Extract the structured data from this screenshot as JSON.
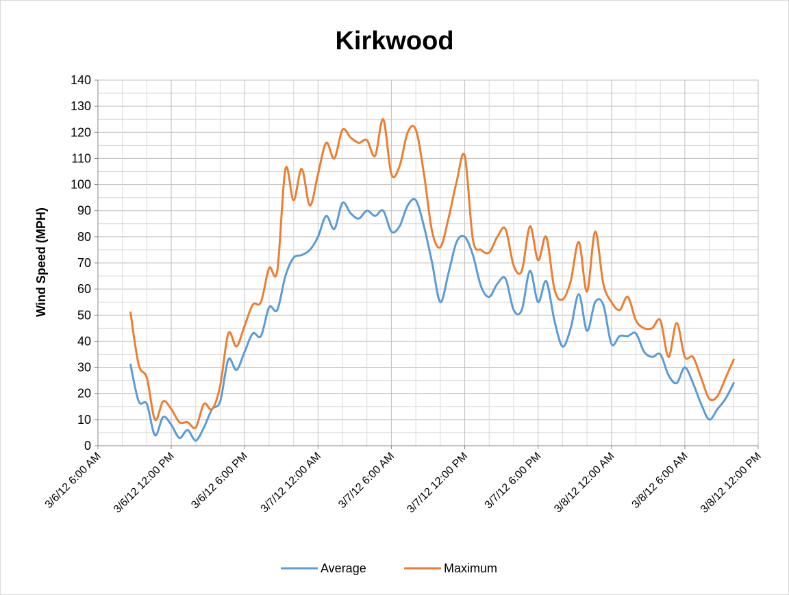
{
  "chart_data": {
    "type": "line",
    "title": "Kirkwood",
    "xlabel": "",
    "ylabel": "Wind Speed (MPH)",
    "ylim": [
      0,
      140
    ],
    "y_ticks": [
      0,
      10,
      20,
      30,
      40,
      50,
      60,
      70,
      80,
      90,
      100,
      110,
      120,
      130,
      140
    ],
    "xlim": [
      "2012-03-06T06:00",
      "2012-03-08T12:00"
    ],
    "x_tick_labels": [
      "3/6/12 6:00 AM",
      "3/6/12 12:00 PM",
      "3/6/12 6:00 PM",
      "3/7/12 12:00 AM",
      "3/7/12 6:00 AM",
      "3/7/12 12:00 PM",
      "3/7/12 6:00 PM",
      "3/8/12 12:00 AM",
      "3/8/12 6:00 AM",
      "3/8/12 12:00 PM"
    ],
    "grid": true,
    "legend": "bottom",
    "x": [
      "2012-03-06T08:40",
      "2012-03-06T09:20",
      "2012-03-06T10:00",
      "2012-03-06T10:40",
      "2012-03-06T11:20",
      "2012-03-06T12:00",
      "2012-03-06T12:40",
      "2012-03-06T13:20",
      "2012-03-06T14:00",
      "2012-03-06T14:40",
      "2012-03-06T15:20",
      "2012-03-06T16:00",
      "2012-03-06T16:40",
      "2012-03-06T17:20",
      "2012-03-06T18:00",
      "2012-03-06T18:40",
      "2012-03-06T19:20",
      "2012-03-06T20:00",
      "2012-03-06T20:40",
      "2012-03-06T21:20",
      "2012-03-06T22:00",
      "2012-03-06T22:40",
      "2012-03-06T23:20",
      "2012-03-07T00:00",
      "2012-03-07T00:40",
      "2012-03-07T01:20",
      "2012-03-07T02:00",
      "2012-03-07T02:40",
      "2012-03-07T03:20",
      "2012-03-07T04:00",
      "2012-03-07T04:40",
      "2012-03-07T05:20",
      "2012-03-07T06:00",
      "2012-03-07T06:40",
      "2012-03-07T07:20",
      "2012-03-07T08:00",
      "2012-03-07T08:40",
      "2012-03-07T09:20",
      "2012-03-07T10:00",
      "2012-03-07T10:40",
      "2012-03-07T11:20",
      "2012-03-07T12:00",
      "2012-03-07T12:40",
      "2012-03-07T13:20",
      "2012-03-07T14:00",
      "2012-03-07T14:40",
      "2012-03-07T15:20",
      "2012-03-07T16:00",
      "2012-03-07T16:40",
      "2012-03-07T17:20",
      "2012-03-07T18:00",
      "2012-03-07T18:40",
      "2012-03-07T19:20",
      "2012-03-07T20:00",
      "2012-03-07T20:40",
      "2012-03-07T21:20",
      "2012-03-07T22:00",
      "2012-03-07T22:40",
      "2012-03-07T23:20",
      "2012-03-08T00:00",
      "2012-03-08T00:40",
      "2012-03-08T01:20",
      "2012-03-08T02:00",
      "2012-03-08T02:40",
      "2012-03-08T03:20",
      "2012-03-08T04:00",
      "2012-03-08T04:40",
      "2012-03-08T05:20",
      "2012-03-08T06:00",
      "2012-03-08T06:40",
      "2012-03-08T07:20",
      "2012-03-08T08:00",
      "2012-03-08T08:40",
      "2012-03-08T09:20",
      "2012-03-08T10:00"
    ],
    "series": [
      {
        "name": "Average",
        "color": "#5b9bd5",
        "values": [
          31,
          17,
          16,
          4,
          11,
          8,
          3,
          6,
          2,
          7,
          14,
          17,
          33,
          29,
          36,
          43,
          42,
          53,
          52,
          65,
          72,
          73,
          75,
          80,
          88,
          83,
          93,
          89,
          87,
          90,
          88,
          90,
          82,
          84,
          92,
          94,
          84,
          70,
          55,
          66,
          78,
          80,
          73,
          61,
          57,
          62,
          64,
          52,
          52,
          67,
          55,
          63,
          48,
          38,
          45,
          58,
          44,
          55,
          54,
          39,
          42,
          42,
          43,
          36,
          34,
          35,
          27,
          24,
          30,
          24,
          16,
          10,
          14,
          18,
          24
        ]
      },
      {
        "name": "Maximum",
        "color": "#ed7d31",
        "values": [
          51,
          31,
          26,
          10,
          17,
          14,
          9,
          9,
          7,
          16,
          14,
          23,
          43,
          38,
          46,
          54,
          55,
          68,
          67,
          106,
          94,
          106,
          92,
          104,
          116,
          110,
          121,
          118,
          116,
          117,
          111,
          125,
          104,
          107,
          120,
          121,
          104,
          82,
          76,
          87,
          101,
          111,
          79,
          75,
          74,
          80,
          83,
          69,
          67,
          84,
          71,
          80,
          60,
          56,
          63,
          78,
          59,
          82,
          62,
          55,
          52,
          57,
          48,
          45,
          45,
          48,
          34,
          47,
          34,
          34,
          26,
          18,
          19,
          26,
          33
        ]
      }
    ]
  }
}
